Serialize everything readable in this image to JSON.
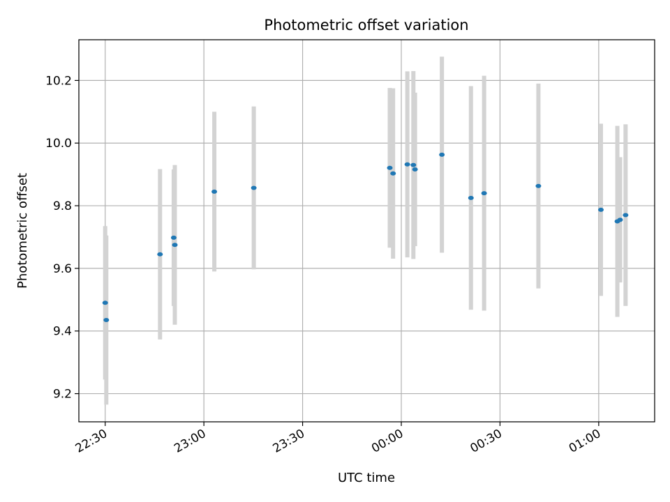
{
  "chart_data": {
    "type": "scatter",
    "title": "Photometric offset variation",
    "xlabel": "UTC time",
    "ylabel": "Photometric offset",
    "grid": true,
    "x_axis": {
      "kind": "time",
      "ticks": [
        "22:30",
        "23:00",
        "23:30",
        "00:00",
        "00:30",
        "01:00"
      ],
      "range": [
        "22:22",
        "01:17"
      ]
    },
    "y_axis": {
      "range": [
        9.11,
        10.33
      ],
      "ticks": [
        9.2,
        9.4,
        9.6,
        9.8,
        10.0,
        10.2
      ]
    },
    "colors": {
      "points": "#1f77b4",
      "errorbars": "#d3d3d3",
      "grid": "#b0b0b0"
    },
    "points": [
      {
        "t": "22:30:00",
        "y": 9.49,
        "err": 0.245
      },
      {
        "t": "22:30:20",
        "y": 9.435,
        "err": 0.27
      },
      {
        "t": "22:46:40",
        "y": 9.645,
        "err": 0.272
      },
      {
        "t": "22:50:50",
        "y": 9.698,
        "err": 0.218
      },
      {
        "t": "22:51:10",
        "y": 9.675,
        "err": 0.255
      },
      {
        "t": "23:03:10",
        "y": 9.845,
        "err": 0.255
      },
      {
        "t": "23:15:10",
        "y": 9.857,
        "err": 0.26
      },
      {
        "t": "23:56:30",
        "y": 9.921,
        "err": 0.255
      },
      {
        "t": "23:57:30",
        "y": 9.903,
        "err": 0.272
      },
      {
        "t": "00:01:50",
        "y": 9.932,
        "err": 0.297
      },
      {
        "t": "00:03:40",
        "y": 9.93,
        "err": 0.3
      },
      {
        "t": "00:04:10",
        "y": 9.916,
        "err": 0.245
      },
      {
        "t": "00:12:20",
        "y": 9.963,
        "err": 0.313
      },
      {
        "t": "00:21:10",
        "y": 9.825,
        "err": 0.357
      },
      {
        "t": "00:25:10",
        "y": 9.84,
        "err": 0.375
      },
      {
        "t": "00:41:40",
        "y": 9.863,
        "err": 0.327
      },
      {
        "t": "01:00:40",
        "y": 9.787,
        "err": 0.275
      },
      {
        "t": "01:05:40",
        "y": 9.75,
        "err": 0.305
      },
      {
        "t": "01:06:30",
        "y": 9.755,
        "err": 0.2
      },
      {
        "t": "01:08:10",
        "y": 9.77,
        "err": 0.29
      }
    ]
  }
}
